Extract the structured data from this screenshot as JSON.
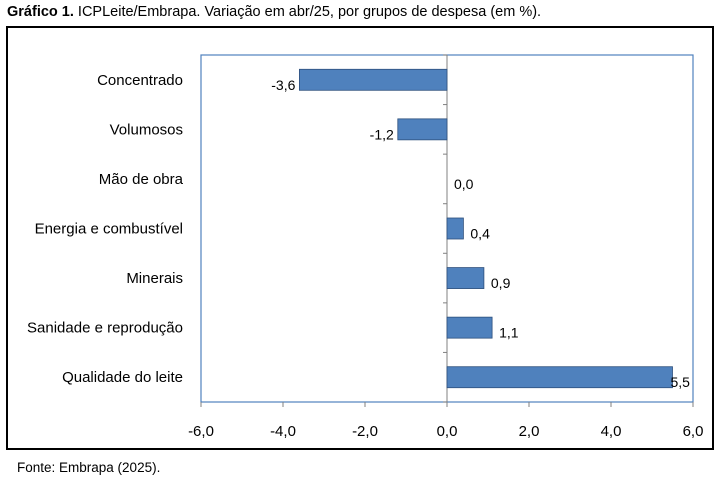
{
  "caption": {
    "bold": "Gráfico 1.",
    "text": " ICPLeite/Embrapa. Variação em abr/25, por grupos de despesa (em %)."
  },
  "source": "Fonte: Embrapa (2025).",
  "colors": {
    "bar": "#4f81bd",
    "bar_edge": "#2d4f7c",
    "plot_border": "#4f81bd"
  },
  "chart_data": {
    "type": "bar",
    "orientation": "horizontal",
    "title": "",
    "xlabel": "",
    "ylabel": "",
    "categories": [
      "Concentrado",
      "Volumosos",
      "Mão de obra",
      "Energia e combustível",
      "Minerais",
      "Sanidade e reprodução",
      "Qualidade do leite"
    ],
    "values": [
      -3.6,
      -1.2,
      0.0,
      0.4,
      0.9,
      1.1,
      5.5
    ],
    "data_labels": [
      "-3,6",
      "-1,2",
      "0,0",
      "0,4",
      "0,9",
      "1,1",
      "5,5"
    ],
    "xlim": [
      -6,
      6
    ],
    "xticks": [
      -6,
      -4,
      -2,
      0,
      2,
      4,
      6
    ],
    "xtick_labels": [
      "-6,0",
      "-4,0",
      "-2,0",
      "0,0",
      "2,0",
      "4,0",
      "6,0"
    ],
    "grid": false,
    "legend": "none"
  }
}
